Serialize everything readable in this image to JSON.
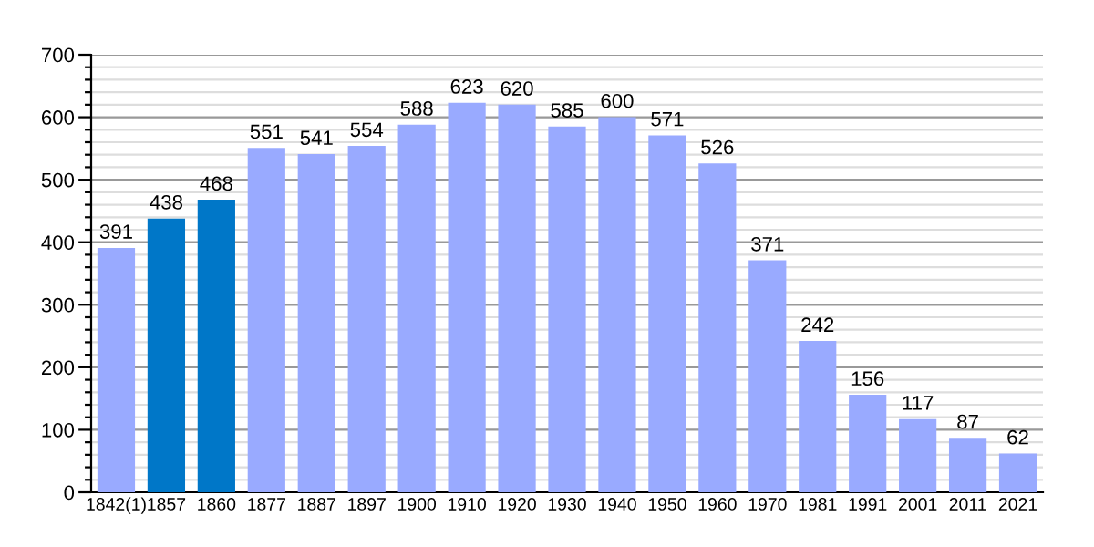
{
  "chart_data": {
    "type": "bar",
    "categories": [
      "1842(1)",
      "1857",
      "1860",
      "1877",
      "1887",
      "1897",
      "1900",
      "1910",
      "1920",
      "1930",
      "1940",
      "1950",
      "1960",
      "1970",
      "1981",
      "1991",
      "2001",
      "2011",
      "2021"
    ],
    "values": [
      391,
      438,
      468,
      551,
      541,
      554,
      588,
      623,
      620,
      585,
      600,
      571,
      526,
      371,
      242,
      156,
      117,
      87,
      62
    ],
    "colors": [
      "#99aaff",
      "#0077c8",
      "#0077c8",
      "#99aaff",
      "#99aaff",
      "#99aaff",
      "#99aaff",
      "#99aaff",
      "#99aaff",
      "#99aaff",
      "#99aaff",
      "#99aaff",
      "#99aaff",
      "#99aaff",
      "#99aaff",
      "#99aaff",
      "#99aaff",
      "#99aaff",
      "#99aaff"
    ],
    "ylim": [
      0,
      700
    ],
    "yticks": [
      0,
      {
        "value": 20,
        "label": null
      },
      {
        "value": 40,
        "label": null
      },
      {
        "value": 60,
        "label": null
      },
      {
        "value": 80,
        "label": null
      },
      100,
      {
        "value": 120,
        "label": null
      },
      {
        "value": 140,
        "label": null
      },
      {
        "value": 160,
        "label": null
      },
      {
        "value": 180,
        "label": null
      },
      200,
      {
        "value": 220,
        "label": null
      },
      {
        "value": 240,
        "label": null
      },
      {
        "value": 260,
        "label": null
      },
      {
        "value": 280,
        "label": null
      },
      300,
      {
        "value": 320,
        "label": null
      },
      {
        "value": 340,
        "label": null
      },
      {
        "value": 360,
        "label": null
      },
      {
        "value": 380,
        "label": null
      },
      400,
      {
        "value": 420,
        "label": null
      },
      {
        "value": 440,
        "label": null
      },
      {
        "value": 460,
        "label": null
      },
      {
        "value": 480,
        "label": null
      },
      500,
      {
        "value": 520,
        "label": null
      },
      {
        "value": 540,
        "label": null
      },
      {
        "value": 560,
        "label": null
      },
      {
        "value": 580,
        "label": null
      },
      600,
      {
        "value": 620,
        "label": null
      },
      {
        "value": 640,
        "label": null
      },
      {
        "value": 660,
        "label": null
      },
      {
        "value": 680,
        "label": null
      },
      700
    ],
    "grid": "y",
    "data_labels": true
  }
}
